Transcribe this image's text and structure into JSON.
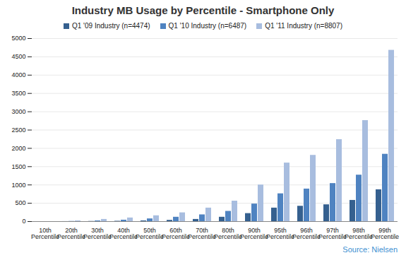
{
  "chart_data": {
    "type": "bar",
    "title": "Industry MB Usage by Percentile - Smartphone Only",
    "categories": [
      "10th Percentile",
      "20th Percentile",
      "30th Percentile",
      "40th Percentile",
      "50th Percentile",
      "60th Percentile",
      "70th Percentile",
      "80th Percentile",
      "90th Percentile",
      "95th Percentile",
      "96th Percentile",
      "97th Percentile",
      "98th Percentile",
      "99th Percentile"
    ],
    "series": [
      {
        "name": "Q1 '09 Industry (n=4474)",
        "color": "#35608f",
        "values": [
          0,
          1,
          5,
          10,
          20,
          35,
          60,
          120,
          220,
          370,
          420,
          460,
          580,
          870
        ]
      },
      {
        "name": "Q1 '10 Industry (n=6487)",
        "color": "#4f83c1",
        "values": [
          0,
          5,
          20,
          40,
          75,
          120,
          185,
          280,
          480,
          760,
          890,
          1040,
          1270,
          1840
        ]
      },
      {
        "name": "Q1 '11 Industry (n=8807)",
        "color": "#a8bddf",
        "values": [
          1,
          20,
          60,
          100,
          160,
          240,
          370,
          560,
          1000,
          1600,
          1810,
          2240,
          2760,
          4680
        ]
      }
    ],
    "ylim": [
      0,
      5000
    ],
    "yticks": [
      0,
      500,
      1000,
      1500,
      2000,
      2500,
      3000,
      3500,
      4000,
      4500,
      5000
    ],
    "grid": true,
    "legend": "top",
    "source": "Source: Nielsen"
  }
}
